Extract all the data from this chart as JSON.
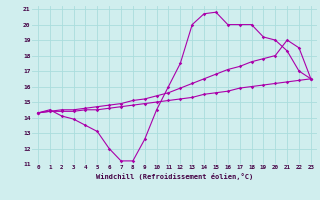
{
  "xlabel": "Windchill (Refroidissement éolien,°C)",
  "xlim": [
    -0.5,
    23.5
  ],
  "ylim": [
    11,
    21.2
  ],
  "yticks": [
    11,
    12,
    13,
    14,
    15,
    16,
    17,
    18,
    19,
    20,
    21
  ],
  "xticks": [
    0,
    1,
    2,
    3,
    4,
    5,
    6,
    7,
    8,
    9,
    10,
    11,
    12,
    13,
    14,
    15,
    16,
    17,
    18,
    19,
    20,
    21,
    22,
    23
  ],
  "bg_color": "#d0eeee",
  "line_color": "#aa00aa",
  "grid_color": "#aadddd",
  "line1_x": [
    0,
    1,
    2,
    3,
    4,
    5,
    6,
    7,
    8,
    9,
    10,
    11,
    12,
    13,
    14,
    15,
    16,
    17,
    18,
    19,
    20,
    21,
    22,
    23
  ],
  "line1_y": [
    14.3,
    14.5,
    14.1,
    13.9,
    13.5,
    13.1,
    12.0,
    11.2,
    11.2,
    12.6,
    14.5,
    16.0,
    17.5,
    20.0,
    20.7,
    20.8,
    20.0,
    20.0,
    20.0,
    19.2,
    19.0,
    18.3,
    17.0,
    16.5
  ],
  "line2_x": [
    0,
    1,
    2,
    3,
    4,
    5,
    6,
    7,
    8,
    9,
    10,
    11,
    12,
    13,
    14,
    15,
    16,
    17,
    18,
    19,
    20,
    21,
    22,
    23
  ],
  "line2_y": [
    14.3,
    14.4,
    14.5,
    14.5,
    14.6,
    14.7,
    14.8,
    14.9,
    15.1,
    15.2,
    15.4,
    15.6,
    15.9,
    16.2,
    16.5,
    16.8,
    17.1,
    17.3,
    17.6,
    17.8,
    18.0,
    19.0,
    18.5,
    16.5
  ],
  "line3_x": [
    0,
    1,
    2,
    3,
    4,
    5,
    6,
    7,
    8,
    9,
    10,
    11,
    12,
    13,
    14,
    15,
    16,
    17,
    18,
    19,
    20,
    21,
    22,
    23
  ],
  "line3_y": [
    14.3,
    14.4,
    14.4,
    14.4,
    14.5,
    14.5,
    14.6,
    14.7,
    14.8,
    14.9,
    15.0,
    15.1,
    15.2,
    15.3,
    15.5,
    15.6,
    15.7,
    15.9,
    16.0,
    16.1,
    16.2,
    16.3,
    16.4,
    16.5
  ]
}
